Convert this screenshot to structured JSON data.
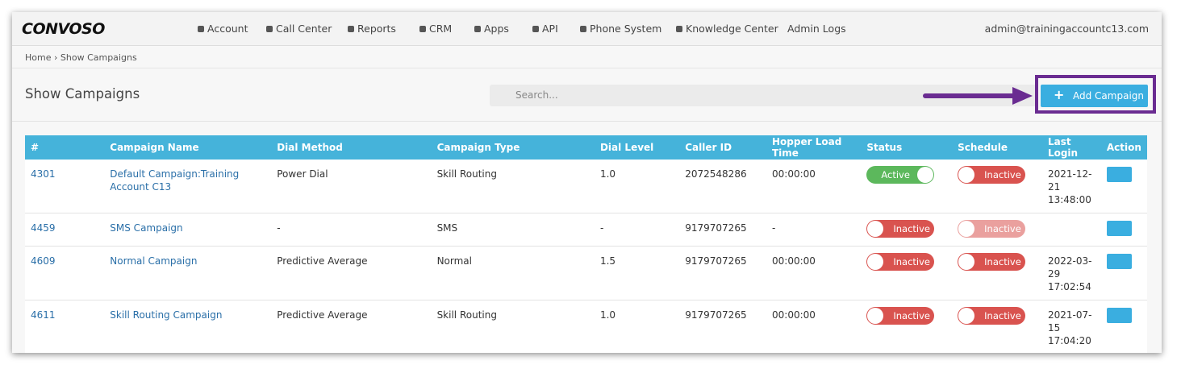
{
  "nav": {
    "logo": "CONVOSO",
    "items": [
      "Account",
      "Call Center",
      "Reports",
      "CRM",
      "Apps",
      "API",
      "Phone System",
      "Knowledge Center",
      "Admin Logs"
    ],
    "user": "admin@trainingaccountc13.com"
  },
  "breadcrumb": [
    "Home",
    "Show Campaigns"
  ],
  "page": {
    "title": "Show Campaigns",
    "search_placeholder": "Search...",
    "add_button": "Add Campaign"
  },
  "table": {
    "headers": [
      "#",
      "Campaign Name",
      "Dial Method",
      "Campaign Type",
      "Dial Level",
      "Caller ID",
      "Hopper Load Time",
      "Status",
      "Schedule",
      "Last Login",
      "Action"
    ],
    "rows": [
      {
        "id": "4301",
        "name": "Default Campaign:Training Account C13",
        "dial_method": "Power Dial",
        "type": "Skill Routing",
        "dial_level": "1.0",
        "caller_id": "2072548286",
        "hopper": "00:00:00",
        "status": "Active",
        "schedule": "Inactive",
        "schedule_enabled": true,
        "last_login": "2021-12-21 13:48:00"
      },
      {
        "id": "4459",
        "name": "SMS Campaign",
        "dial_method": "-",
        "type": "SMS",
        "dial_level": "-",
        "caller_id": "9179707265",
        "hopper": "-",
        "status": "Inactive",
        "schedule": "Inactive",
        "schedule_enabled": false,
        "last_login": null
      },
      {
        "id": "4609",
        "name": "Normal Campaign",
        "dial_method": "Predictive Average",
        "type": "Normal",
        "dial_level": "1.5",
        "caller_id": "9179707265",
        "hopper": "00:00:00",
        "status": "Inactive",
        "schedule": "Inactive",
        "schedule_enabled": true,
        "last_login": "2022-03-29 17:02:54"
      },
      {
        "id": "4611",
        "name": "Skill Routing Campaign",
        "dial_method": "Predictive Average",
        "type": "Skill Routing",
        "dial_level": "1.0",
        "caller_id": "9179707265",
        "hopper": "00:00:00",
        "status": "Inactive",
        "schedule": "Inactive",
        "schedule_enabled": true,
        "last_login": "2021-07-15 17:04:20"
      }
    ]
  }
}
